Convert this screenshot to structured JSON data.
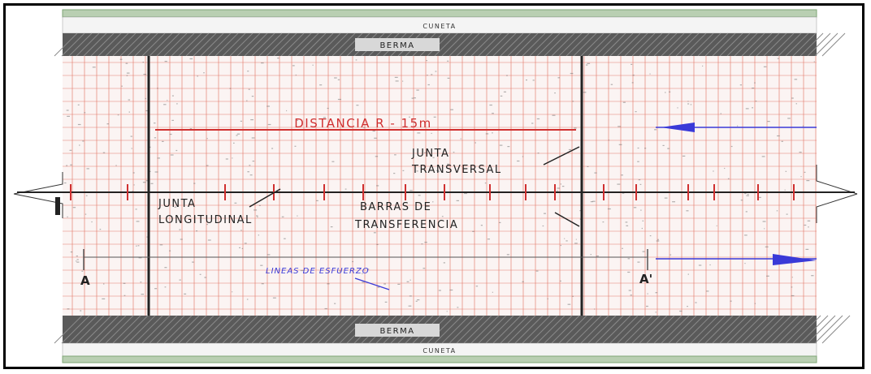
{
  "drawing": {
    "top_strip_label": "CUNETA",
    "top_band_label": "BERMA",
    "bottom_band_label": "BERMA",
    "bottom_strip_label": "CUNETA",
    "distance_label": "DISTANCIA R - 15m",
    "transverse_joint_label_line1": "JUNTA",
    "transverse_joint_label_line2": "TRANSVERSAL",
    "longitudinal_joint_label_line1": "JUNTA",
    "longitudinal_joint_label_line2": "LONGITUDINAL",
    "transfer_bars_label_line1": "BARRAS DE",
    "transfer_bars_label_line2": "TRANSFERENCIA",
    "stress_line_label": "LINEAS DE ESFUERZO",
    "section_mark_left": "A",
    "section_mark_right": "A'"
  },
  "colors": {
    "mesh_red": "#e0705f",
    "dim_red": "#d03030",
    "band_gray": "#555555",
    "arrow_blue": "#3a3ad8",
    "text_black": "#222222",
    "strip_green": "#7fa676"
  }
}
